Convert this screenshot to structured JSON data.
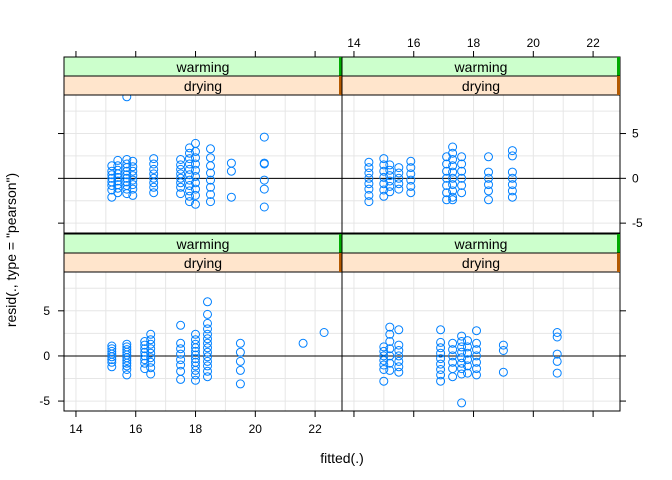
{
  "chart_data": {
    "type": "scatter",
    "xlabel": "fitted(.)",
    "ylabel": "resid(., type = \"pearson\")",
    "x_ticks": [
      14,
      16,
      18,
      20,
      22
    ],
    "y_ticks": [
      -5,
      0,
      5
    ],
    "xlim": [
      13.6,
      22.9
    ],
    "ylim": [
      -6.1,
      9.3
    ],
    "x_ticks_left": [
      "14",
      "16",
      "18",
      "20",
      "22"
    ],
    "x_ticks_right": [
      "14",
      "16",
      "18",
      "20",
      "22"
    ],
    "y_ticks_left": [
      "-5",
      "0",
      "5"
    ],
    "y_ticks_right": [
      "-5",
      "0",
      "5"
    ],
    "colors": {
      "points": "#0080ff",
      "strip_outer": "#ccffcc",
      "strip_inner": "#ffe5cc",
      "grid": "#e6e6e6",
      "zero_line": "#000000"
    },
    "panels": [
      {
        "id": "bottom-left",
        "strips": [
          "warming",
          "drying"
        ],
        "points": [
          [
            15.2,
            1.1
          ],
          [
            15.2,
            0.8
          ],
          [
            15.2,
            0.5
          ],
          [
            15.2,
            0.2
          ],
          [
            15.2,
            -0.1
          ],
          [
            15.2,
            -0.4
          ],
          [
            15.2,
            -0.7
          ],
          [
            15.2,
            -1.2
          ],
          [
            15.7,
            1.3
          ],
          [
            15.7,
            1.0
          ],
          [
            15.7,
            0.7
          ],
          [
            15.7,
            0.4
          ],
          [
            15.7,
            0.1
          ],
          [
            15.7,
            -0.2
          ],
          [
            15.7,
            -0.5
          ],
          [
            15.7,
            -0.8
          ],
          [
            15.7,
            -1.1
          ],
          [
            15.7,
            -1.5
          ],
          [
            15.7,
            -2.1
          ],
          [
            16.3,
            1.6
          ],
          [
            16.3,
            1.2
          ],
          [
            16.3,
            0.8
          ],
          [
            16.3,
            0.4
          ],
          [
            16.3,
            0.0
          ],
          [
            16.3,
            -0.4
          ],
          [
            16.3,
            -0.8
          ],
          [
            16.3,
            -1.4
          ],
          [
            16.5,
            2.4
          ],
          [
            16.5,
            1.8
          ],
          [
            16.5,
            1.3
          ],
          [
            16.5,
            0.8
          ],
          [
            16.5,
            0.3
          ],
          [
            16.5,
            -0.2
          ],
          [
            16.5,
            -0.7
          ],
          [
            16.5,
            -1.3
          ],
          [
            16.5,
            -2.0
          ],
          [
            17.5,
            3.4
          ],
          [
            17.5,
            1.4
          ],
          [
            17.5,
            0.8
          ],
          [
            17.5,
            0.2
          ],
          [
            17.5,
            -0.4
          ],
          [
            17.5,
            -1.0
          ],
          [
            17.5,
            -1.7
          ],
          [
            17.5,
            -2.6
          ],
          [
            18.0,
            2.4
          ],
          [
            18.0,
            1.8
          ],
          [
            18.0,
            1.3
          ],
          [
            18.0,
            0.9
          ],
          [
            18.0,
            0.5
          ],
          [
            18.0,
            0.1
          ],
          [
            18.0,
            -0.3
          ],
          [
            18.0,
            -0.7
          ],
          [
            18.0,
            -1.1
          ],
          [
            18.0,
            -1.6
          ],
          [
            18.0,
            -2.1
          ],
          [
            18.0,
            -2.7
          ],
          [
            18.4,
            6.0
          ],
          [
            18.4,
            4.6
          ],
          [
            18.4,
            3.6
          ],
          [
            18.4,
            3.0
          ],
          [
            18.4,
            2.4
          ],
          [
            18.4,
            1.9
          ],
          [
            18.4,
            1.4
          ],
          [
            18.4,
            0.9
          ],
          [
            18.4,
            0.4
          ],
          [
            18.4,
            -0.1
          ],
          [
            18.4,
            -0.6
          ],
          [
            18.4,
            -1.1
          ],
          [
            18.4,
            -1.7
          ],
          [
            18.4,
            -2.3
          ],
          [
            19.5,
            1.4
          ],
          [
            19.5,
            0.4
          ],
          [
            19.5,
            -0.6
          ],
          [
            19.5,
            -1.6
          ],
          [
            19.5,
            -3.1
          ],
          [
            21.6,
            1.4
          ],
          [
            22.3,
            2.6
          ]
        ]
      },
      {
        "id": "bottom-right",
        "strips": [
          "warming",
          "drying"
        ],
        "points": [
          [
            15.0,
            1.0
          ],
          [
            15.0,
            0.5
          ],
          [
            15.0,
            0.0
          ],
          [
            15.0,
            -0.5
          ],
          [
            15.0,
            -1.0
          ],
          [
            15.0,
            -1.5
          ],
          [
            15.0,
            -2.8
          ],
          [
            15.2,
            3.2
          ],
          [
            15.2,
            2.4
          ],
          [
            15.2,
            1.6
          ],
          [
            15.2,
            0.8
          ],
          [
            15.2,
            0.0
          ],
          [
            15.2,
            -0.8
          ],
          [
            15.2,
            -1.6
          ],
          [
            15.5,
            2.9
          ],
          [
            15.5,
            1.2
          ],
          [
            15.5,
            0.6
          ],
          [
            15.5,
            0.0
          ],
          [
            15.5,
            -0.6
          ],
          [
            15.5,
            -1.2
          ],
          [
            15.5,
            -1.8
          ],
          [
            16.9,
            2.9
          ],
          [
            16.9,
            1.5
          ],
          [
            16.9,
            0.9
          ],
          [
            16.9,
            0.3
          ],
          [
            16.9,
            -0.3
          ],
          [
            16.9,
            -0.9
          ],
          [
            16.9,
            -1.5
          ],
          [
            16.9,
            -2.1
          ],
          [
            16.9,
            -2.8
          ],
          [
            17.3,
            1.4
          ],
          [
            17.3,
            0.7
          ],
          [
            17.3,
            0.0
          ],
          [
            17.3,
            -0.7
          ],
          [
            17.3,
            -1.4
          ],
          [
            17.3,
            -2.3
          ],
          [
            17.6,
            2.2
          ],
          [
            17.6,
            1.6
          ],
          [
            17.6,
            1.0
          ],
          [
            17.6,
            0.4
          ],
          [
            17.6,
            -0.2
          ],
          [
            17.6,
            -0.8
          ],
          [
            17.6,
            -1.4
          ],
          [
            17.6,
            -2.0
          ],
          [
            17.6,
            -5.2
          ],
          [
            17.8,
            1.7
          ],
          [
            17.8,
            1.0
          ],
          [
            17.8,
            0.3
          ],
          [
            17.8,
            -0.4
          ],
          [
            17.8,
            -1.1
          ],
          [
            17.8,
            -1.9
          ],
          [
            18.1,
            2.8
          ],
          [
            18.1,
            1.4
          ],
          [
            18.1,
            0.7
          ],
          [
            18.1,
            0.0
          ],
          [
            18.1,
            -0.7
          ],
          [
            18.1,
            -1.4
          ],
          [
            18.1,
            -2.1
          ],
          [
            19.0,
            1.2
          ],
          [
            19.0,
            0.6
          ],
          [
            19.0,
            -1.8
          ],
          [
            20.8,
            2.6
          ],
          [
            20.8,
            2.1
          ],
          [
            20.8,
            0.2
          ],
          [
            20.8,
            -0.6
          ],
          [
            20.8,
            -1.9
          ]
        ]
      },
      {
        "id": "top-left",
        "strips": [
          "warming",
          "drying"
        ],
        "points": [
          [
            15.2,
            1.4
          ],
          [
            15.2,
            0.8
          ],
          [
            15.2,
            0.4
          ],
          [
            15.2,
            0.0
          ],
          [
            15.2,
            -0.4
          ],
          [
            15.2,
            -0.8
          ],
          [
            15.2,
            -1.3
          ],
          [
            15.2,
            -2.1
          ],
          [
            15.4,
            2.0
          ],
          [
            15.4,
            1.4
          ],
          [
            15.4,
            0.9
          ],
          [
            15.4,
            0.5
          ],
          [
            15.4,
            0.1
          ],
          [
            15.4,
            -0.3
          ],
          [
            15.4,
            -0.7
          ],
          [
            15.4,
            -1.1
          ],
          [
            15.4,
            -1.6
          ],
          [
            15.7,
            9.1
          ],
          [
            15.7,
            2.1
          ],
          [
            15.7,
            1.6
          ],
          [
            15.7,
            1.2
          ],
          [
            15.7,
            0.8
          ],
          [
            15.7,
            0.4
          ],
          [
            15.7,
            0.0
          ],
          [
            15.7,
            -0.4
          ],
          [
            15.7,
            -0.8
          ],
          [
            15.7,
            -1.2
          ],
          [
            15.7,
            -1.7
          ],
          [
            15.9,
            1.9
          ],
          [
            15.9,
            1.3
          ],
          [
            15.9,
            0.8
          ],
          [
            15.9,
            0.3
          ],
          [
            15.9,
            -0.2
          ],
          [
            15.9,
            -0.7
          ],
          [
            15.9,
            -1.2
          ],
          [
            15.9,
            -1.9
          ],
          [
            16.6,
            2.2
          ],
          [
            16.6,
            1.6
          ],
          [
            16.6,
            1.0
          ],
          [
            16.6,
            0.5
          ],
          [
            16.6,
            0.0
          ],
          [
            16.6,
            -0.5
          ],
          [
            16.6,
            -1.0
          ],
          [
            16.6,
            -1.6
          ],
          [
            17.5,
            2.1
          ],
          [
            17.5,
            1.5
          ],
          [
            17.5,
            1.0
          ],
          [
            17.5,
            0.5
          ],
          [
            17.5,
            0.0
          ],
          [
            17.5,
            -0.5
          ],
          [
            17.5,
            -1.0
          ],
          [
            17.5,
            -1.7
          ],
          [
            17.8,
            3.4
          ],
          [
            17.8,
            2.8
          ],
          [
            17.8,
            2.2
          ],
          [
            17.8,
            1.6
          ],
          [
            17.8,
            1.0
          ],
          [
            17.8,
            0.4
          ],
          [
            17.8,
            -0.2
          ],
          [
            17.8,
            -0.8
          ],
          [
            17.8,
            -1.4
          ],
          [
            17.8,
            -2.0
          ],
          [
            17.8,
            -2.6
          ],
          [
            18.0,
            3.9
          ],
          [
            18.0,
            3.0
          ],
          [
            18.0,
            2.3
          ],
          [
            18.0,
            1.6
          ],
          [
            18.0,
            0.9
          ],
          [
            18.0,
            0.2
          ],
          [
            18.0,
            -0.5
          ],
          [
            18.0,
            -1.2
          ],
          [
            18.0,
            -1.9
          ],
          [
            18.0,
            -2.9
          ],
          [
            18.5,
            3.3
          ],
          [
            18.5,
            2.3
          ],
          [
            18.5,
            1.4
          ],
          [
            18.5,
            0.6
          ],
          [
            18.5,
            -0.2
          ],
          [
            18.5,
            -1.0
          ],
          [
            18.5,
            -1.8
          ],
          [
            18.5,
            -2.6
          ],
          [
            19.2,
            1.7
          ],
          [
            19.2,
            0.8
          ],
          [
            19.2,
            -2.1
          ],
          [
            20.3,
            4.6
          ],
          [
            20.3,
            1.7
          ],
          [
            20.3,
            1.6
          ],
          [
            20.3,
            -0.2
          ],
          [
            20.3,
            -1.2
          ],
          [
            20.3,
            -3.2
          ]
        ]
      },
      {
        "id": "top-right",
        "strips": [
          "warming",
          "drying"
        ],
        "points": [
          [
            14.5,
            1.8
          ],
          [
            14.5,
            1.2
          ],
          [
            14.5,
            0.6
          ],
          [
            14.5,
            0.0
          ],
          [
            14.5,
            -0.6
          ],
          [
            14.5,
            -1.2
          ],
          [
            14.5,
            -1.9
          ],
          [
            14.5,
            -2.6
          ],
          [
            15.0,
            2.2
          ],
          [
            15.0,
            1.5
          ],
          [
            15.0,
            0.8
          ],
          [
            15.0,
            0.1
          ],
          [
            15.0,
            -0.6
          ],
          [
            15.0,
            -1.3
          ],
          [
            15.0,
            -2.0
          ],
          [
            15.2,
            1.5
          ],
          [
            15.2,
            0.9
          ],
          [
            15.2,
            0.3
          ],
          [
            15.2,
            -0.3
          ],
          [
            15.2,
            -0.9
          ],
          [
            15.2,
            -1.5
          ],
          [
            15.5,
            1.2
          ],
          [
            15.5,
            0.6
          ],
          [
            15.5,
            0.0
          ],
          [
            15.5,
            -0.6
          ],
          [
            15.5,
            -1.2
          ],
          [
            15.9,
            1.9
          ],
          [
            15.9,
            1.2
          ],
          [
            15.9,
            0.5
          ],
          [
            15.9,
            -0.2
          ],
          [
            15.9,
            -0.9
          ],
          [
            15.9,
            -1.6
          ],
          [
            17.1,
            2.4
          ],
          [
            17.1,
            1.6
          ],
          [
            17.1,
            0.8
          ],
          [
            17.1,
            0.0
          ],
          [
            17.1,
            -0.8
          ],
          [
            17.1,
            -1.6
          ],
          [
            17.1,
            -2.4
          ],
          [
            17.3,
            3.5
          ],
          [
            17.3,
            2.8
          ],
          [
            17.3,
            2.1
          ],
          [
            17.3,
            1.4
          ],
          [
            17.3,
            0.7
          ],
          [
            17.3,
            0.0
          ],
          [
            17.3,
            -0.7
          ],
          [
            17.3,
            -1.4
          ],
          [
            17.3,
            -2.1
          ],
          [
            17.3,
            -2.4
          ],
          [
            17.6,
            2.4
          ],
          [
            17.6,
            1.6
          ],
          [
            17.6,
            0.8
          ],
          [
            17.6,
            0.0
          ],
          [
            17.6,
            -0.8
          ],
          [
            17.6,
            -1.6
          ],
          [
            18.5,
            2.4
          ],
          [
            18.5,
            0.7
          ],
          [
            18.5,
            0.0
          ],
          [
            18.5,
            -0.7
          ],
          [
            18.5,
            -1.4
          ],
          [
            18.5,
            -2.4
          ],
          [
            19.3,
            3.1
          ],
          [
            19.3,
            2.5
          ],
          [
            19.3,
            0.7
          ],
          [
            19.3,
            0.0
          ],
          [
            19.3,
            -0.7
          ],
          [
            19.3,
            -1.4
          ],
          [
            19.3,
            -2.1
          ]
        ]
      }
    ]
  }
}
